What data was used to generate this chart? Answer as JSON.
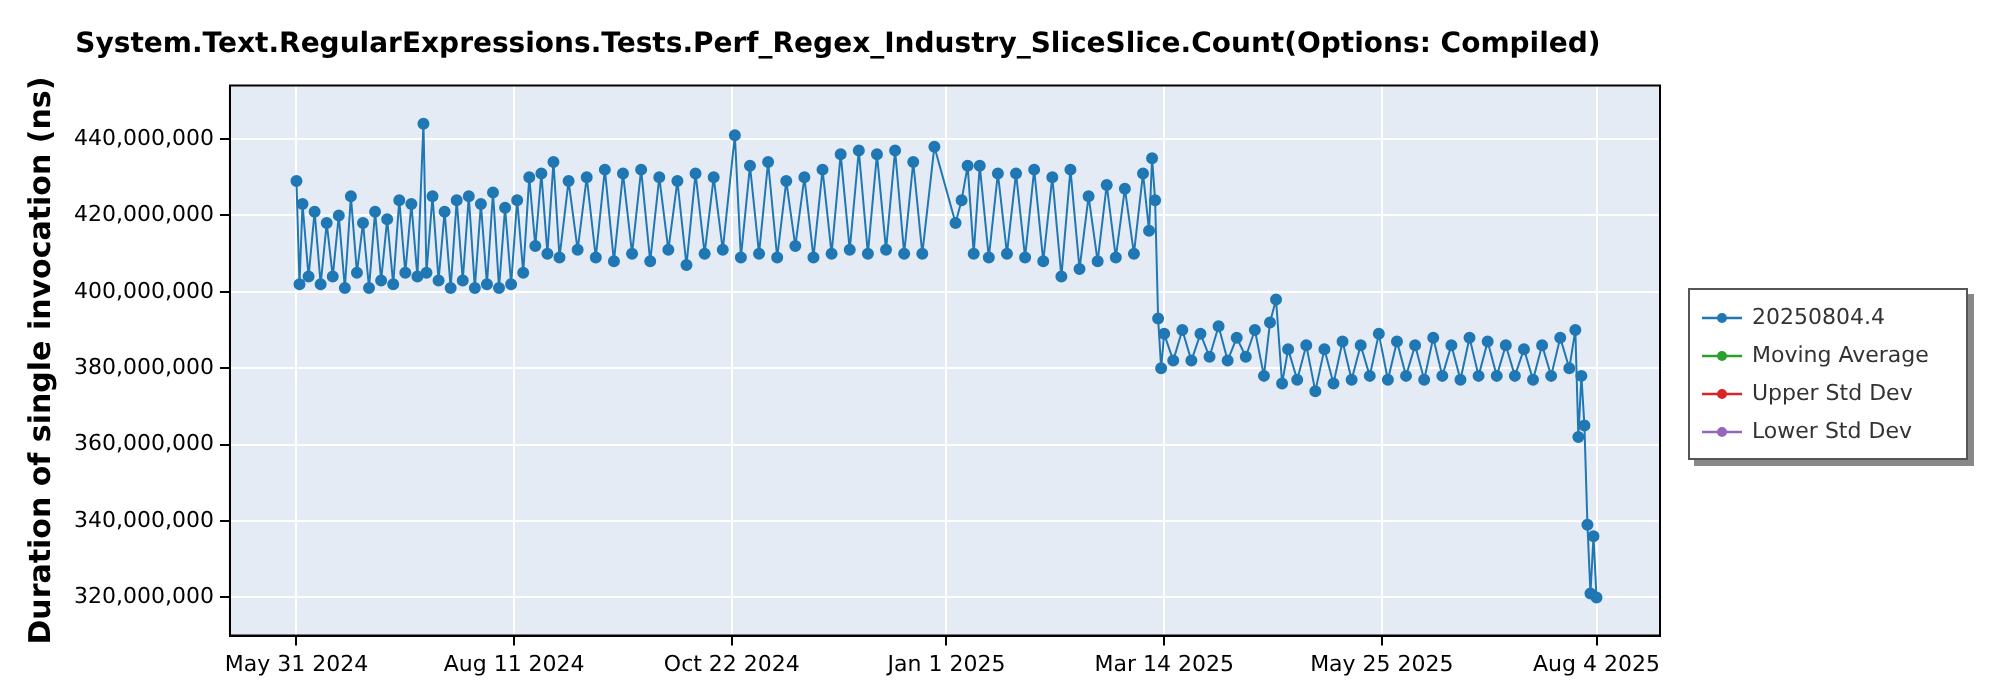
{
  "chart_data": {
    "type": "line",
    "title": "System.Text.RegularExpressions.Tests.Perf_Regex_Industry_SliceSlice.Count(Options: Compiled)",
    "ylabel": "Duration of single invocation (ns)",
    "xlim": [
      "2024-05-09",
      "2025-08-25"
    ],
    "xticks": [
      {
        "value": "2024-05-31",
        "label": "May 31 2024"
      },
      {
        "value": "2024-08-11",
        "label": "Aug 11 2024"
      },
      {
        "value": "2024-10-22",
        "label": "Oct 22 2024"
      },
      {
        "value": "2025-01-01",
        "label": "Jan 1 2025"
      },
      {
        "value": "2025-03-14",
        "label": "Mar 14 2025"
      },
      {
        "value": "2025-05-25",
        "label": "May 25 2025"
      },
      {
        "value": "2025-08-04",
        "label": "Aug 4 2025"
      }
    ],
    "ylim": [
      310000000,
      454000000
    ],
    "yticks": [
      {
        "value": 320000000,
        "label": "320,000,000"
      },
      {
        "value": 340000000,
        "label": "340,000,000"
      },
      {
        "value": 360000000,
        "label": "360,000,000"
      },
      {
        "value": 380000000,
        "label": "380,000,000"
      },
      {
        "value": 400000000,
        "label": "400,000,000"
      },
      {
        "value": 420000000,
        "label": "420,000,000"
      },
      {
        "value": 440000000,
        "label": "440,000,000"
      }
    ],
    "grid": true,
    "legend": "right",
    "marker": "circle",
    "x": [
      "2024-05-31",
      "2024-06-01",
      "2024-06-02",
      "2024-06-04",
      "2024-06-06",
      "2024-06-08",
      "2024-06-10",
      "2024-06-12",
      "2024-06-14",
      "2024-06-16",
      "2024-06-18",
      "2024-06-20",
      "2024-06-22",
      "2024-06-24",
      "2024-06-26",
      "2024-06-28",
      "2024-06-30",
      "2024-07-02",
      "2024-07-04",
      "2024-07-06",
      "2024-07-08",
      "2024-07-10",
      "2024-07-12",
      "2024-07-13",
      "2024-07-15",
      "2024-07-17",
      "2024-07-19",
      "2024-07-21",
      "2024-07-23",
      "2024-07-25",
      "2024-07-27",
      "2024-07-29",
      "2024-07-31",
      "2024-08-02",
      "2024-08-04",
      "2024-08-06",
      "2024-08-08",
      "2024-08-10",
      "2024-08-12",
      "2024-08-14",
      "2024-08-16",
      "2024-08-18",
      "2024-08-20",
      "2024-08-22",
      "2024-08-24",
      "2024-08-26",
      "2024-08-29",
      "2024-09-01",
      "2024-09-04",
      "2024-09-07",
      "2024-09-10",
      "2024-09-13",
      "2024-09-16",
      "2024-09-19",
      "2024-09-22",
      "2024-09-25",
      "2024-09-28",
      "2024-10-01",
      "2024-10-04",
      "2024-10-07",
      "2024-10-10",
      "2024-10-13",
      "2024-10-16",
      "2024-10-19",
      "2024-10-23",
      "2024-10-25",
      "2024-10-28",
      "2024-10-31",
      "2024-11-03",
      "2024-11-06",
      "2024-11-09",
      "2024-11-12",
      "2024-11-15",
      "2024-11-18",
      "2024-11-21",
      "2024-11-24",
      "2024-11-27",
      "2024-11-30",
      "2024-12-03",
      "2024-12-06",
      "2024-12-09",
      "2024-12-12",
      "2024-12-15",
      "2024-12-18",
      "2024-12-21",
      "2024-12-24",
      "2024-12-28",
      "2025-01-04",
      "2025-01-06",
      "2025-01-08",
      "2025-01-10",
      "2025-01-12",
      "2025-01-15",
      "2025-01-18",
      "2025-01-21",
      "2025-01-24",
      "2025-01-27",
      "2025-01-30",
      "2025-02-02",
      "2025-02-05",
      "2025-02-08",
      "2025-02-11",
      "2025-02-14",
      "2025-02-17",
      "2025-02-20",
      "2025-02-23",
      "2025-02-26",
      "2025-03-01",
      "2025-03-04",
      "2025-03-07",
      "2025-03-09",
      "2025-03-10",
      "2025-03-11",
      "2025-03-12",
      "2025-03-13",
      "2025-03-14",
      "2025-03-17",
      "2025-03-20",
      "2025-03-23",
      "2025-03-26",
      "2025-03-29",
      "2025-04-01",
      "2025-04-04",
      "2025-04-07",
      "2025-04-10",
      "2025-04-13",
      "2025-04-16",
      "2025-04-18",
      "2025-04-20",
      "2025-04-22",
      "2025-04-24",
      "2025-04-27",
      "2025-04-30",
      "2025-05-03",
      "2025-05-06",
      "2025-05-09",
      "2025-05-12",
      "2025-05-15",
      "2025-05-18",
      "2025-05-21",
      "2025-05-24",
      "2025-05-27",
      "2025-05-30",
      "2025-06-02",
      "2025-06-05",
      "2025-06-08",
      "2025-06-11",
      "2025-06-14",
      "2025-06-17",
      "2025-06-20",
      "2025-06-23",
      "2025-06-26",
      "2025-06-29",
      "2025-07-02",
      "2025-07-05",
      "2025-07-08",
      "2025-07-11",
      "2025-07-14",
      "2025-07-17",
      "2025-07-20",
      "2025-07-23",
      "2025-07-26",
      "2025-07-28",
      "2025-07-29",
      "2025-07-30",
      "2025-07-31",
      "2025-08-01",
      "2025-08-02",
      "2025-08-03",
      "2025-08-04"
    ],
    "series": [
      {
        "name": "20250804.4",
        "color": "#1f77b4",
        "values": [
          429000000,
          402000000,
          423000000,
          404000000,
          421000000,
          402000000,
          418000000,
          404000000,
          420000000,
          401000000,
          425000000,
          405000000,
          418000000,
          401000000,
          421000000,
          403000000,
          419000000,
          402000000,
          424000000,
          405000000,
          423000000,
          404000000,
          444000000,
          405000000,
          425000000,
          403000000,
          421000000,
          401000000,
          424000000,
          403000000,
          425000000,
          401000000,
          423000000,
          402000000,
          426000000,
          401000000,
          422000000,
          402000000,
          424000000,
          405000000,
          430000000,
          412000000,
          431000000,
          410000000,
          434000000,
          409000000,
          429000000,
          411000000,
          430000000,
          409000000,
          432000000,
          408000000,
          431000000,
          410000000,
          432000000,
          408000000,
          430000000,
          411000000,
          429000000,
          407000000,
          431000000,
          410000000,
          430000000,
          411000000,
          441000000,
          409000000,
          433000000,
          410000000,
          434000000,
          409000000,
          429000000,
          412000000,
          430000000,
          409000000,
          432000000,
          410000000,
          436000000,
          411000000,
          437000000,
          410000000,
          436000000,
          411000000,
          437000000,
          410000000,
          434000000,
          410000000,
          438000000,
          418000000,
          424000000,
          433000000,
          410000000,
          433000000,
          409000000,
          431000000,
          410000000,
          431000000,
          409000000,
          432000000,
          408000000,
          430000000,
          404000000,
          432000000,
          406000000,
          425000000,
          408000000,
          428000000,
          409000000,
          427000000,
          410000000,
          431000000,
          416000000,
          435000000,
          424000000,
          393000000,
          380000000,
          389000000,
          382000000,
          390000000,
          382000000,
          389000000,
          383000000,
          391000000,
          382000000,
          388000000,
          383000000,
          390000000,
          378000000,
          392000000,
          398000000,
          376000000,
          385000000,
          377000000,
          386000000,
          374000000,
          385000000,
          376000000,
          387000000,
          377000000,
          386000000,
          378000000,
          389000000,
          377000000,
          387000000,
          378000000,
          386000000,
          377000000,
          388000000,
          378000000,
          386000000,
          377000000,
          388000000,
          378000000,
          387000000,
          378000000,
          386000000,
          378000000,
          385000000,
          377000000,
          386000000,
          378000000,
          388000000,
          380000000,
          390000000,
          362000000,
          378000000,
          365000000,
          339000000,
          321000000,
          336000000,
          320000000
        ]
      },
      {
        "name": "Moving Average",
        "color": "#2ca02c",
        "values": [
          null,
          null,
          null,
          null,
          null,
          null,
          null,
          null,
          null,
          null,
          null,
          null,
          null,
          null,
          null,
          null,
          null,
          null,
          null,
          null,
          null,
          null,
          null,
          null,
          null,
          null,
          null,
          null,
          null,
          null,
          null,
          null,
          null,
          null,
          null,
          null,
          null,
          null,
          null,
          null,
          null,
          null,
          null,
          null,
          null,
          null,
          null,
          null,
          null,
          null,
          null,
          null,
          null,
          null,
          null,
          null,
          null,
          null,
          null,
          null,
          null,
          null,
          null,
          null,
          null,
          null,
          null,
          null,
          null,
          null,
          null,
          null,
          null,
          null,
          null,
          null,
          null,
          null,
          null,
          null,
          null,
          null,
          null,
          null,
          null,
          null,
          null,
          null,
          null,
          null,
          null,
          null,
          null,
          null,
          null,
          null,
          null,
          null,
          null,
          null,
          null,
          null,
          null,
          null,
          null,
          null,
          null,
          null,
          null,
          null,
          null,
          null,
          null,
          null,
          null,
          null,
          null,
          null,
          null,
          null,
          null,
          null,
          null,
          null,
          null,
          null,
          null,
          null,
          null,
          null,
          null,
          null,
          null,
          null,
          null,
          null,
          null,
          null,
          null,
          null,
          null,
          null,
          null,
          null,
          null,
          null,
          null,
          null,
          null,
          null,
          null,
          null,
          null,
          null,
          null,
          null,
          null,
          null,
          null,
          null,
          null,
          null,
          null,
          null,
          null,
          null,
          null,
          null,
          null,
          null
        ]
      },
      {
        "name": "Upper Std Dev",
        "color": "#d62728",
        "values": [
          null,
          null,
          null,
          null,
          null,
          null,
          null,
          null,
          null,
          null,
          null,
          null,
          null,
          null,
          null,
          null,
          null,
          null,
          null,
          null,
          null,
          null,
          null,
          null,
          null,
          null,
          null,
          null,
          null,
          null,
          null,
          null,
          null,
          null,
          null,
          null,
          null,
          null,
          null,
          null,
          null,
          null,
          null,
          null,
          null,
          null,
          null,
          null,
          null,
          null,
          null,
          null,
          null,
          null,
          null,
          null,
          null,
          null,
          null,
          null,
          null,
          null,
          null,
          null,
          null,
          null,
          null,
          null,
          null,
          null,
          null,
          null,
          null,
          null,
          null,
          null,
          null,
          null,
          null,
          null,
          null,
          null,
          null,
          null,
          null,
          null,
          null,
          null,
          null,
          null,
          null,
          null,
          null,
          null,
          null,
          null,
          null,
          null,
          null,
          null,
          null,
          null,
          null,
          null,
          null,
          null,
          null,
          null,
          null,
          null,
          null,
          null,
          null,
          null,
          null,
          null,
          null,
          null,
          null,
          null,
          null,
          null,
          null,
          null,
          null,
          null,
          null,
          null,
          null,
          null,
          null,
          null,
          null,
          null,
          null,
          null,
          null,
          null,
          null,
          null,
          null,
          null,
          null,
          null,
          null,
          null,
          null,
          null,
          null,
          null,
          null,
          null,
          null,
          null,
          null,
          null,
          null,
          null,
          null,
          null,
          null,
          null,
          null,
          null,
          null,
          null,
          null,
          null,
          null,
          null
        ]
      },
      {
        "name": "Lower Std Dev",
        "color": "#9467bd",
        "values": [
          null,
          null,
          null,
          null,
          null,
          null,
          null,
          null,
          null,
          null,
          null,
          null,
          null,
          null,
          null,
          null,
          null,
          null,
          null,
          null,
          null,
          null,
          null,
          null,
          null,
          null,
          null,
          null,
          null,
          null,
          null,
          null,
          null,
          null,
          null,
          null,
          null,
          null,
          null,
          null,
          null,
          null,
          null,
          null,
          null,
          null,
          null,
          null,
          null,
          null,
          null,
          null,
          null,
          null,
          null,
          null,
          null,
          null,
          null,
          null,
          null,
          null,
          null,
          null,
          null,
          null,
          null,
          null,
          null,
          null,
          null,
          null,
          null,
          null,
          null,
          null,
          null,
          null,
          null,
          null,
          null,
          null,
          null,
          null,
          null,
          null,
          null,
          null,
          null,
          null,
          null,
          null,
          null,
          null,
          null,
          null,
          null,
          null,
          null,
          null,
          null,
          null,
          null,
          null,
          null,
          null,
          null,
          null,
          null,
          null,
          null,
          null,
          null,
          null,
          null,
          null,
          null,
          null,
          null,
          null,
          null,
          null,
          null,
          null,
          null,
          null,
          null,
          null,
          null,
          null,
          null,
          null,
          null,
          null,
          null,
          null,
          null,
          null,
          null,
          null,
          null,
          null,
          null,
          null,
          null,
          null,
          null,
          null,
          null,
          null,
          null,
          null,
          null,
          null,
          null,
          null,
          null,
          null,
          null,
          null,
          null,
          null,
          null,
          null,
          null,
          null,
          null,
          null,
          null,
          null
        ]
      }
    ]
  }
}
